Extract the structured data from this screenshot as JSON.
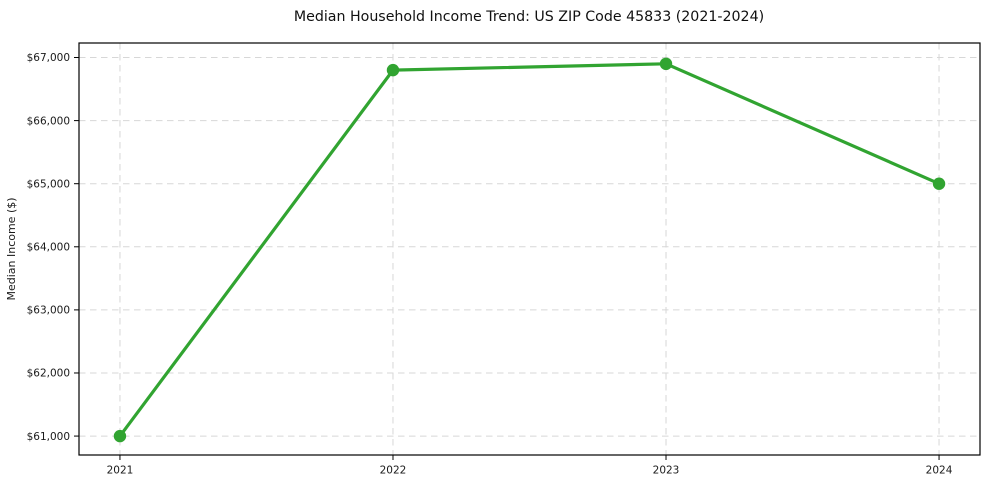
{
  "chart_data": {
    "type": "line",
    "title": "Median Household Income Trend: US ZIP Code 45833 (2021-2024)",
    "xlabel": "",
    "ylabel": "Median Income ($)",
    "x": [
      2021,
      2022,
      2023,
      2024
    ],
    "values": [
      61000,
      66800,
      66900,
      65000
    ],
    "xtick_labels": [
      "2021",
      "2022",
      "2023",
      "2024"
    ],
    "ytick_values": [
      61000,
      62000,
      63000,
      64000,
      65000,
      66000,
      67000
    ],
    "ytick_labels": [
      "$61,000",
      "$62,000",
      "$63,000",
      "$64,000",
      "$65,000",
      "$66,000",
      "$67,000"
    ],
    "xlim": [
      2020.85,
      2024.15
    ],
    "ylim": [
      60700,
      67230
    ],
    "grid": true,
    "grid_style": "dashed",
    "legend": false,
    "line_color": "#31a431",
    "marker": "circle",
    "grid_color": "#d7d7d7",
    "axis_color": "#000000",
    "text_color": "#1a1a1a",
    "background": "#ffffff"
  }
}
